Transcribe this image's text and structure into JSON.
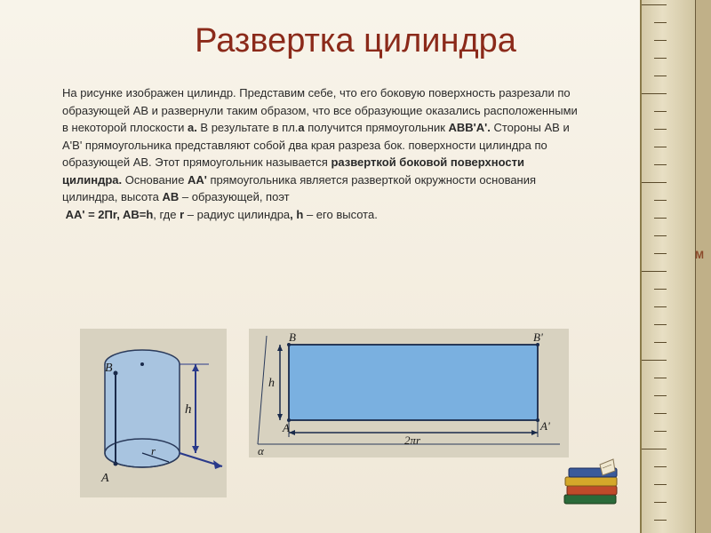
{
  "title": "Развертка цилиндра",
  "paragraph": {
    "p1": "На рисунке изображен цилиндр. Представим себе, что его боковую поверхность разрезали по образующей АВ и развернули таким образом, что все образующие оказались расположенными в некоторой плоскости ",
    "b1": "а.",
    "p2": " В результате в пл.",
    "b2": "а",
    "p3": " получится прямоугольник ",
    "b3": "ABB'A'.",
    "p4": " Стороны АВ и A'B' прямоугольника представляют собой два края разреза бок. поверхности цилиндра по образующей АВ. Этот прямоугольник называется ",
    "b4": "разверткой боковой поверхности цилиндра.",
    "p5": " Основание ",
    "b5": "AA'",
    "p6": " прямоугольника является разверткой окружности основания цилиндра, высота ",
    "b6": "AB",
    "p7": " – образующей, поэт",
    "b7": "AA' = 2Пr, AB=h",
    "p8": ", где ",
    "b8": "r",
    "p9": " – радиус цилиндра",
    "b9": ", h",
    "p10": " – его высота."
  },
  "esc_label": "М",
  "cylinder_fig": {
    "bg": "#d8d2c0",
    "stroke": "#2a3a5a",
    "fill": "#a8c4e0",
    "radius_label": "r",
    "height_label": "h",
    "pt_A": "A",
    "pt_B": "B"
  },
  "rect_fig": {
    "bg": "#d8d2c0",
    "stroke": "#2a3a5a",
    "fill": "#7ab0e0",
    "pt_A": "A",
    "pt_B": "B",
    "pt_Ap": "A'",
    "pt_Bp": "B'",
    "height_label": "h",
    "width_label": "2πr",
    "alpha": "α"
  },
  "books": {
    "colors": [
      "#2a6a3a",
      "#c04a2a",
      "#d4a82a",
      "#3a5a9a"
    ]
  },
  "ruler": {
    "bg1": "#d4c9a8",
    "bg2": "#e8dfc4",
    "tick_color": "#5a4a2a",
    "tick_count": 30
  }
}
